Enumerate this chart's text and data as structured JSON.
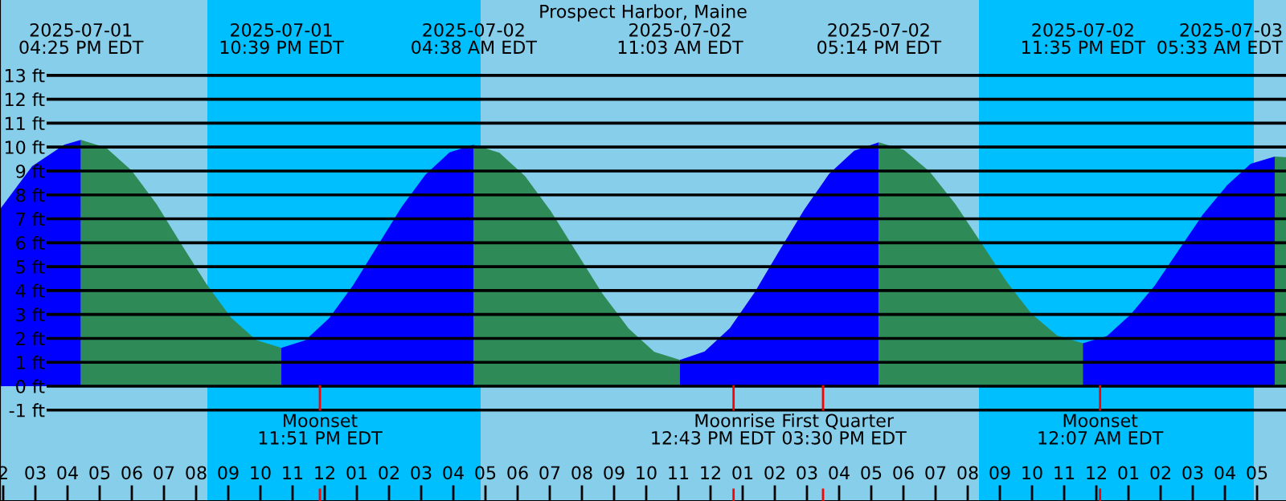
{
  "chart_data": {
    "type": "area",
    "title": "Prospect Harbor, Maine",
    "xlim": [
      "2025-07-01T13:54",
      "2025-07-03T05:54"
    ],
    "ylim": [
      -4.8,
      16.15
    ],
    "yticks": [
      {
        "value": -1,
        "label": "-1 ft"
      },
      {
        "value": 0,
        "label": "0 ft"
      },
      {
        "value": 1,
        "label": "1 ft"
      },
      {
        "value": 2,
        "label": "2 ft"
      },
      {
        "value": 3,
        "label": "3 ft"
      },
      {
        "value": 4,
        "label": "4 ft"
      },
      {
        "value": 5,
        "label": "5 ft"
      },
      {
        "value": 6,
        "label": "6 ft"
      },
      {
        "value": 7,
        "label": "7 ft"
      },
      {
        "value": 8,
        "label": "8 ft"
      },
      {
        "value": 9,
        "label": "9 ft"
      },
      {
        "value": 10,
        "label": "10 ft"
      },
      {
        "value": 11,
        "label": "11 ft"
      },
      {
        "value": 12,
        "label": "12 ft"
      },
      {
        "value": 13,
        "label": "13 ft"
      }
    ],
    "xticks": [
      {
        "value": "2025-07-01T14:00",
        "label": "2"
      },
      {
        "value": "2025-07-01T15:00",
        "label": "03"
      },
      {
        "value": "2025-07-01T16:00",
        "label": "04"
      },
      {
        "value": "2025-07-01T17:00",
        "label": "05"
      },
      {
        "value": "2025-07-01T18:00",
        "label": "06"
      },
      {
        "value": "2025-07-01T19:00",
        "label": "07"
      },
      {
        "value": "2025-07-01T20:00",
        "label": "08"
      },
      {
        "value": "2025-07-01T21:00",
        "label": "09"
      },
      {
        "value": "2025-07-01T22:00",
        "label": "10"
      },
      {
        "value": "2025-07-01T23:00",
        "label": "11"
      },
      {
        "value": "2025-07-02T00:00",
        "label": "12"
      },
      {
        "value": "2025-07-02T01:00",
        "label": "01"
      },
      {
        "value": "2025-07-02T02:00",
        "label": "02"
      },
      {
        "value": "2025-07-02T03:00",
        "label": "03"
      },
      {
        "value": "2025-07-02T04:00",
        "label": "04"
      },
      {
        "value": "2025-07-02T05:00",
        "label": "05"
      },
      {
        "value": "2025-07-02T06:00",
        "label": "06"
      },
      {
        "value": "2025-07-02T07:00",
        "label": "07"
      },
      {
        "value": "2025-07-02T08:00",
        "label": "08"
      },
      {
        "value": "2025-07-02T09:00",
        "label": "09"
      },
      {
        "value": "2025-07-02T10:00",
        "label": "10"
      },
      {
        "value": "2025-07-02T11:00",
        "label": "11"
      },
      {
        "value": "2025-07-02T12:00",
        "label": "12"
      },
      {
        "value": "2025-07-02T13:00",
        "label": "01"
      },
      {
        "value": "2025-07-02T14:00",
        "label": "02"
      },
      {
        "value": "2025-07-02T15:00",
        "label": "03"
      },
      {
        "value": "2025-07-02T16:00",
        "label": "04"
      },
      {
        "value": "2025-07-02T17:00",
        "label": "05"
      },
      {
        "value": "2025-07-02T18:00",
        "label": "06"
      },
      {
        "value": "2025-07-02T19:00",
        "label": "07"
      },
      {
        "value": "2025-07-02T20:00",
        "label": "08"
      },
      {
        "value": "2025-07-02T21:00",
        "label": "09"
      },
      {
        "value": "2025-07-02T22:00",
        "label": "10"
      },
      {
        "value": "2025-07-02T23:00",
        "label": "11"
      },
      {
        "value": "2025-07-03T00:00",
        "label": "12"
      },
      {
        "value": "2025-07-03T01:00",
        "label": "01"
      },
      {
        "value": "2025-07-03T02:00",
        "label": "02"
      },
      {
        "value": "2025-07-03T03:00",
        "label": "03"
      },
      {
        "value": "2025-07-03T04:00",
        "label": "04"
      },
      {
        "value": "2025-07-03T05:00",
        "label": "05"
      }
    ],
    "grid": "y",
    "series": [
      {
        "color": "#0000ff",
        "x": [
          "2025-07-01T13:54",
          "2025-07-01T14:54",
          "2025-07-01T15:54",
          "2025-07-01T16:25"
        ],
        "values": [
          7.4,
          9.2,
          10.1,
          10.3
        ]
      },
      {
        "color": "#2e8b57",
        "x": [
          "2025-07-01T16:25",
          "2025-07-01T17:12",
          "2025-07-01T17:59",
          "2025-07-01T18:46",
          "2025-07-01T19:32",
          "2025-07-01T20:19",
          "2025-07-01T21:05",
          "2025-07-01T21:52",
          "2025-07-01T22:39"
        ],
        "values": [
          10.3,
          9.97,
          9.03,
          7.62,
          5.95,
          4.28,
          2.87,
          1.93,
          1.6
        ]
      },
      {
        "color": "#0000ff",
        "x": [
          "2025-07-01T22:39",
          "2025-07-01T23:24",
          "2025-07-02T00:08",
          "2025-07-02T00:53",
          "2025-07-02T01:38",
          "2025-07-02T02:23",
          "2025-07-02T03:08",
          "2025-07-02T03:53",
          "2025-07-02T04:38"
        ],
        "values": [
          1.6,
          1.92,
          2.84,
          4.22,
          5.85,
          7.48,
          8.85,
          9.78,
          10.1
        ]
      },
      {
        "color": "#2e8b57",
        "x": [
          "2025-07-02T04:38",
          "2025-07-02T05:26",
          "2025-07-02T06:14",
          "2025-07-02T07:02",
          "2025-07-02T07:50",
          "2025-07-02T08:38",
          "2025-07-02T09:27",
          "2025-07-02T10:15",
          "2025-07-02T11:03"
        ],
        "values": [
          10.1,
          9.76,
          8.78,
          7.32,
          5.6,
          3.88,
          2.42,
          1.44,
          1.1
        ]
      },
      {
        "color": "#0000ff",
        "x": [
          "2025-07-02T11:03",
          "2025-07-02T11:49",
          "2025-07-02T12:36",
          "2025-07-02T13:22",
          "2025-07-02T14:08",
          "2025-07-02T14:55",
          "2025-07-02T15:41",
          "2025-07-02T16:28",
          "2025-07-02T17:14"
        ],
        "values": [
          1.1,
          1.45,
          2.43,
          3.91,
          5.65,
          7.39,
          8.87,
          9.85,
          10.2
        ]
      },
      {
        "color": "#2e8b57",
        "x": [
          "2025-07-02T17:14",
          "2025-07-02T18:01",
          "2025-07-02T18:49",
          "2025-07-02T19:37",
          "2025-07-02T20:25",
          "2025-07-02T21:12",
          "2025-07-02T21:59",
          "2025-07-02T22:47",
          "2025-07-02T23:35"
        ],
        "values": [
          10.2,
          9.88,
          8.97,
          7.61,
          6.0,
          4.39,
          3.03,
          2.12,
          1.8
        ]
      },
      {
        "color": "#0000ff",
        "x": [
          "2025-07-02T23:35",
          "2025-07-03T00:20",
          "2025-07-03T01:04",
          "2025-07-03T01:49",
          "2025-07-03T02:34",
          "2025-07-03T03:19",
          "2025-07-03T04:04",
          "2025-07-03T04:48",
          "2025-07-03T05:33"
        ],
        "values": [
          1.8,
          2.1,
          3.0,
          4.21,
          5.7,
          7.19,
          8.4,
          9.3,
          9.6
        ]
      },
      {
        "color": "#2e8b57",
        "x": [
          "2025-07-03T05:33",
          "2025-07-03T05:54"
        ],
        "values": [
          9.6,
          9.58
        ]
      }
    ],
    "bands": [
      {
        "axis": "x",
        "from": "2025-07-01T20:21",
        "to": "2025-07-02T04:51",
        "color": "#00bfff"
      },
      {
        "axis": "x",
        "from": "2025-07-02T20:21",
        "to": "2025-07-03T04:54",
        "color": "#00bfff"
      }
    ],
    "ref_lines": [
      {
        "axis": "x",
        "value": "2025-07-01T23:51",
        "label": "Moonset\n11:51 PM EDT",
        "color": "#ff0000"
      },
      {
        "axis": "x",
        "value": "2025-07-02T12:43",
        "label": "Moonrise\n12:43 PM EDT",
        "color": "#ff0000"
      },
      {
        "axis": "x",
        "value": "2025-07-02T15:30",
        "label": "First Quarter\n03:30 PM EDT",
        "color": "#ff0000"
      },
      {
        "axis": "x",
        "value": "2025-07-03T00:07",
        "label": "Moonset\n12:07 AM EDT",
        "color": "#ff0000"
      }
    ],
    "annotations": [
      "2025-07-01\n04:25 PM EDT",
      "2025-07-01\n10:39 PM EDT",
      "2025-07-02\n04:38 AM EDT",
      "2025-07-02\n11:03 AM EDT",
      "2025-07-02\n05:14 PM EDT",
      "2025-07-02\n11:35 PM EDT",
      "2025-07-03\n05:33 AM EDT"
    ]
  }
}
